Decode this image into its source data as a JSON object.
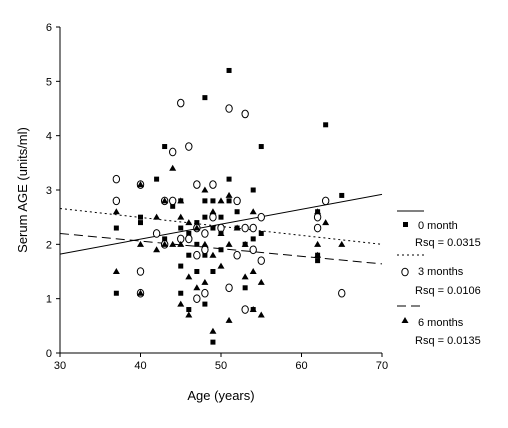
{
  "chart_data": {
    "type": "scatter",
    "xlabel": "Age (years)",
    "ylabel": "Serum AGE (units/ml)",
    "xlim": [
      30,
      70
    ],
    "ylim": [
      0,
      6
    ],
    "xticks": [
      "30",
      "40",
      "50",
      "60",
      "70"
    ],
    "yticks": [
      "0",
      "1",
      "2",
      "3",
      "4",
      "5",
      "6"
    ],
    "legend_position": "right",
    "series": [
      {
        "name": "0 month",
        "marker": "square",
        "line": "solid",
        "rsq": "Rsq = 0.0315",
        "fit": {
          "x0": 30,
          "y0": 1.82,
          "x1": 70,
          "y1": 2.92
        },
        "points": [
          [
            37,
            2.3
          ],
          [
            37,
            1.1
          ],
          [
            40,
            3.1
          ],
          [
            40,
            2.5
          ],
          [
            40,
            2.4
          ],
          [
            40,
            1.1
          ],
          [
            42,
            3.2
          ],
          [
            43,
            3.8
          ],
          [
            43,
            2.1
          ],
          [
            44,
            2.7
          ],
          [
            45,
            2.8
          ],
          [
            45,
            2.3
          ],
          [
            45,
            1.6
          ],
          [
            45,
            1.1
          ],
          [
            46,
            2.2
          ],
          [
            46,
            1.8
          ],
          [
            46,
            0.8
          ],
          [
            47,
            2.4
          ],
          [
            47,
            2.0
          ],
          [
            47,
            1.5
          ],
          [
            48,
            4.7
          ],
          [
            48,
            2.8
          ],
          [
            48,
            2.5
          ],
          [
            48,
            1.8
          ],
          [
            48,
            0.9
          ],
          [
            49,
            2.8
          ],
          [
            49,
            2.3
          ],
          [
            49,
            1.5
          ],
          [
            49,
            0.2
          ],
          [
            50,
            2.5
          ],
          [
            50,
            2.2
          ],
          [
            50,
            1.9
          ],
          [
            51,
            5.2
          ],
          [
            51,
            3.2
          ],
          [
            51,
            2.8
          ],
          [
            52,
            2.6
          ],
          [
            52,
            2.3
          ],
          [
            53,
            2.0
          ],
          [
            53,
            1.2
          ],
          [
            54,
            3.0
          ],
          [
            54,
            2.1
          ],
          [
            54,
            0.8
          ],
          [
            55,
            3.8
          ],
          [
            55,
            2.2
          ],
          [
            62,
            2.6
          ],
          [
            62,
            1.8
          ],
          [
            62,
            1.7
          ],
          [
            63,
            4.2
          ],
          [
            65,
            2.9
          ]
        ]
      },
      {
        "name": "3 months",
        "marker": "circle",
        "line": "dotted",
        "rsq": "Rsq = 0.0106",
        "fit": {
          "x0": 30,
          "y0": 2.66,
          "x1": 70,
          "y1": 2.0
        },
        "points": [
          [
            37,
            3.2
          ],
          [
            37,
            2.8
          ],
          [
            40,
            3.1
          ],
          [
            40,
            1.5
          ],
          [
            40,
            1.1
          ],
          [
            42,
            2.2
          ],
          [
            43,
            2.8
          ],
          [
            43,
            2.0
          ],
          [
            44,
            3.7
          ],
          [
            44,
            2.8
          ],
          [
            45,
            4.6
          ],
          [
            45,
            2.1
          ],
          [
            46,
            3.8
          ],
          [
            46,
            2.1
          ],
          [
            47,
            3.1
          ],
          [
            47,
            2.3
          ],
          [
            47,
            1.8
          ],
          [
            47,
            1.0
          ],
          [
            48,
            2.2
          ],
          [
            48,
            1.9
          ],
          [
            48,
            1.1
          ],
          [
            49,
            3.1
          ],
          [
            49,
            2.5
          ],
          [
            50,
            2.3
          ],
          [
            51,
            4.5
          ],
          [
            51,
            1.2
          ],
          [
            52,
            2.8
          ],
          [
            52,
            1.8
          ],
          [
            53,
            4.4
          ],
          [
            53,
            2.3
          ],
          [
            53,
            0.8
          ],
          [
            54,
            2.3
          ],
          [
            54,
            1.9
          ],
          [
            55,
            2.5
          ],
          [
            55,
            1.7
          ],
          [
            62,
            2.5
          ],
          [
            62,
            2.3
          ],
          [
            63,
            2.8
          ],
          [
            65,
            1.1
          ]
        ]
      },
      {
        "name": "6 months",
        "marker": "triangle",
        "line": "dashed",
        "rsq": "Rsq = 0.0135",
        "fit": {
          "x0": 30,
          "y0": 2.2,
          "x1": 70,
          "y1": 1.64
        },
        "points": [
          [
            37,
            2.6
          ],
          [
            37,
            1.5
          ],
          [
            40,
            3.1
          ],
          [
            40,
            2.0
          ],
          [
            40,
            1.1
          ],
          [
            42,
            2.5
          ],
          [
            42,
            1.9
          ],
          [
            43,
            2.8
          ],
          [
            43,
            2.0
          ],
          [
            44,
            3.4
          ],
          [
            44,
            2.0
          ],
          [
            45,
            2.8
          ],
          [
            45,
            2.5
          ],
          [
            45,
            2.0
          ],
          [
            45,
            0.9
          ],
          [
            46,
            2.4
          ],
          [
            46,
            1.4
          ],
          [
            46,
            0.7
          ],
          [
            47,
            2.3
          ],
          [
            47,
            1.2
          ],
          [
            48,
            3.0
          ],
          [
            48,
            2.0
          ],
          [
            48,
            1.3
          ],
          [
            49,
            2.6
          ],
          [
            49,
            1.8
          ],
          [
            49,
            0.4
          ],
          [
            50,
            2.8
          ],
          [
            50,
            2.2
          ],
          [
            50,
            1.6
          ],
          [
            51,
            2.9
          ],
          [
            51,
            2.0
          ],
          [
            51,
            0.6
          ],
          [
            52,
            2.3
          ],
          [
            53,
            2.0
          ],
          [
            53,
            1.4
          ],
          [
            54,
            2.6
          ],
          [
            54,
            1.5
          ],
          [
            54,
            0.8
          ],
          [
            55,
            1.3
          ],
          [
            55,
            0.7
          ],
          [
            62,
            2.6
          ],
          [
            62,
            2.0
          ],
          [
            62,
            1.8
          ],
          [
            63,
            2.4
          ],
          [
            65,
            2.0
          ]
        ]
      }
    ]
  }
}
